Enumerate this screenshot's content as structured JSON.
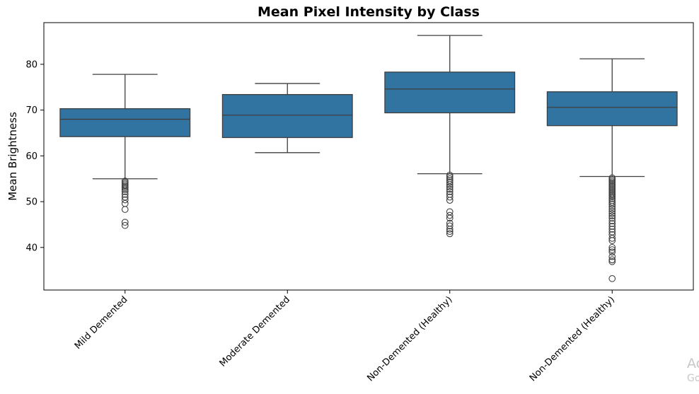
{
  "chart_data": {
    "type": "box",
    "title": "Mean Pixel Intensity by Class",
    "xlabel": "",
    "ylabel": "Mean Brightness",
    "ylim": [
      30.7,
      89.1
    ],
    "yticks": [
      40,
      50,
      60,
      70,
      80
    ],
    "grid": false,
    "box_color": "#3274a1",
    "categories": [
      "Mild Demented",
      "Moderate Demented",
      "Non-Demented (Healthy)",
      "Non-Demented (Healthy)"
    ],
    "boxes": [
      {
        "whisker_low": 55.0,
        "q1": 64.2,
        "median": 68.0,
        "q3": 70.3,
        "whisker_high": 77.8,
        "outliers": [
          54.5,
          54.2,
          53.9,
          53.6,
          53.3,
          53.0,
          52.6,
          52.2,
          51.6,
          51.0,
          50.4,
          49.6,
          48.3,
          45.5,
          44.8
        ]
      },
      {
        "whisker_low": 60.7,
        "q1": 64.0,
        "median": 68.9,
        "q3": 73.4,
        "whisker_high": 75.8,
        "outliers": []
      },
      {
        "whisker_low": 56.1,
        "q1": 69.4,
        "median": 74.6,
        "q3": 78.3,
        "whisker_high": 86.3,
        "outliers": [
          55.8,
          55.4,
          55.0,
          54.6,
          54.2,
          53.7,
          53.2,
          52.7,
          52.2,
          51.6,
          51.0,
          50.3,
          47.8,
          47.0,
          46.4,
          45.3,
          44.7,
          44.0,
          43.5,
          43.0
        ]
      },
      {
        "whisker_low": 55.5,
        "q1": 66.6,
        "median": 70.6,
        "q3": 74.0,
        "whisker_high": 81.2,
        "outliers": [
          55.2,
          54.9,
          54.6,
          54.3,
          54.0,
          53.7,
          53.4,
          53.1,
          52.8,
          52.5,
          52.2,
          51.9,
          51.6,
          51.3,
          51.0,
          50.6,
          50.2,
          49.8,
          49.4,
          48.9,
          48.4,
          47.9,
          47.4,
          46.9,
          46.4,
          45.8,
          45.2,
          44.6,
          44.0,
          43.4,
          42.8,
          42.0,
          41.5,
          40.0,
          39.5,
          39.0,
          38.0,
          37.3,
          36.9,
          33.2
        ]
      }
    ]
  },
  "watermark": {
    "line1": "Ac",
    "line2": "Go"
  }
}
